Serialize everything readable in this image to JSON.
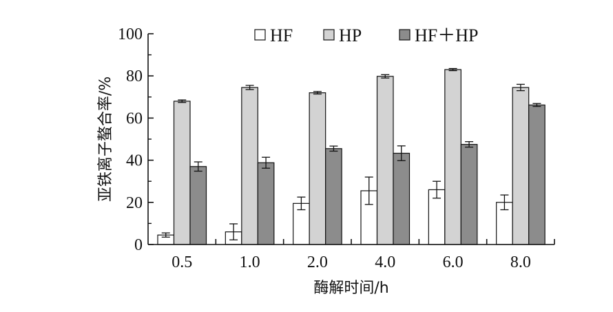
{
  "chart_data": {
    "type": "bar",
    "title": "",
    "xlabel": "酶解时间/h",
    "ylabel": "亚铁离子螯合率/%",
    "ylim": [
      0,
      100
    ],
    "yticks": [
      0,
      20,
      40,
      60,
      80,
      100
    ],
    "categories": [
      "0.5",
      "1.0",
      "2.0",
      "4.0",
      "6.0",
      "8.0"
    ],
    "series": [
      {
        "name": "HF",
        "color": "#ffffff",
        "values": [
          4.5,
          6.0,
          19.5,
          25.5,
          26.0,
          20.0
        ],
        "errors": [
          1.0,
          3.8,
          3.0,
          6.5,
          4.0,
          3.5
        ]
      },
      {
        "name": "HP",
        "color": "#d3d3d3",
        "values": [
          68.0,
          74.5,
          72.0,
          79.8,
          83.0,
          74.5
        ],
        "errors": [
          0.6,
          1.0,
          0.6,
          0.8,
          0.5,
          1.5
        ]
      },
      {
        "name": "HF＋HP",
        "color": "#8c8c8c",
        "values": [
          37.0,
          38.8,
          45.5,
          43.3,
          47.5,
          66.2
        ],
        "errors": [
          2.2,
          2.6,
          1.2,
          3.5,
          1.3,
          0.7
        ]
      }
    ],
    "legend_position": "top-center",
    "grid": false,
    "error_bars": true
  }
}
